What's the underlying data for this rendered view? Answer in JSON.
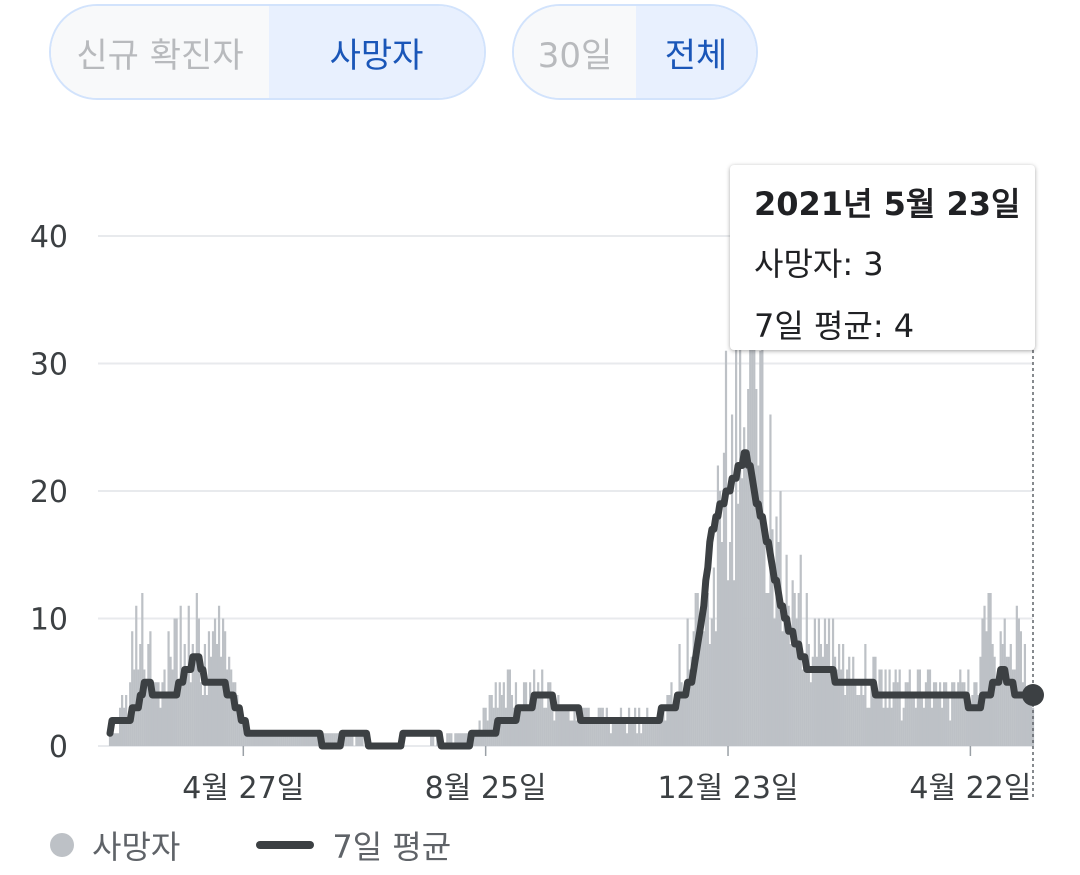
{
  "toggles": {
    "metric": {
      "options": [
        "신규 확진자",
        "사망자"
      ],
      "selected": "사망자"
    },
    "range": {
      "options": [
        "30일",
        "전체"
      ],
      "selected": "전체"
    }
  },
  "tooltip": {
    "date": "2021년 5월 23일",
    "deaths_label": "사망자: 3",
    "avg_label": "7일 평균: 4"
  },
  "legend": {
    "bars": "사망자",
    "line": "7일 평균"
  },
  "colors": {
    "bars": "#bdc1c6",
    "line": "#3c4043",
    "grid": "#e8eaed",
    "accent": "#1a56b8",
    "toggle_border": "#d2e3fc"
  },
  "chart_data": {
    "type": "bar",
    "ylim": [
      0,
      40
    ],
    "yticks": [
      0,
      10,
      20,
      30,
      40
    ],
    "x_tick_labels": [
      "4월 27일",
      "8월 25일",
      "12월 23일",
      "4월 22일"
    ],
    "x_tick_dates": [
      "2020-04-27",
      "2020-08-25",
      "2020-12-23",
      "2021-04-22"
    ],
    "x_range": [
      "2020-02-21",
      "2021-05-23"
    ],
    "grid": true,
    "highlight": {
      "date": "2021-05-23",
      "deaths": 3,
      "avg": 4
    },
    "series": [
      {
        "name": "사망자",
        "kind": "bar",
        "points": [
          [
            "2020-02-21",
            1
          ],
          [
            "2020-03-01",
            4
          ],
          [
            "2020-03-06",
            11
          ],
          [
            "2020-03-10",
            6
          ],
          [
            "2020-03-20",
            6
          ],
          [
            "2020-03-30",
            8
          ],
          [
            "2020-04-03",
            9
          ],
          [
            "2020-04-08",
            6
          ],
          [
            "2020-04-15",
            8
          ],
          [
            "2020-04-20",
            6
          ],
          [
            "2020-04-25",
            3
          ],
          [
            "2020-05-01",
            1
          ],
          [
            "2020-06-01",
            1
          ],
          [
            "2020-07-15",
            0
          ],
          [
            "2020-08-20",
            1
          ],
          [
            "2020-09-01",
            5
          ],
          [
            "2020-09-10",
            4
          ],
          [
            "2020-09-20",
            5
          ],
          [
            "2020-10-01",
            3
          ],
          [
            "2020-10-20",
            2
          ],
          [
            "2020-11-15",
            2
          ],
          [
            "2020-11-25",
            4
          ],
          [
            "2020-12-05",
            8
          ],
          [
            "2020-12-12",
            10
          ],
          [
            "2020-12-18",
            18
          ],
          [
            "2020-12-22",
            24
          ],
          [
            "2020-12-25",
            20
          ],
          [
            "2020-12-29",
            30
          ],
          [
            "2021-01-01",
            25
          ],
          [
            "2021-01-05",
            30
          ],
          [
            "2021-01-08",
            25
          ],
          [
            "2021-01-12",
            20
          ],
          [
            "2021-01-18",
            14
          ],
          [
            "2021-01-25",
            11
          ],
          [
            "2021-02-01",
            10
          ],
          [
            "2021-02-10",
            8
          ],
          [
            "2021-02-20",
            6
          ],
          [
            "2021-03-01",
            6
          ],
          [
            "2021-03-10",
            5
          ],
          [
            "2021-03-20",
            4
          ],
          [
            "2021-04-01",
            4
          ],
          [
            "2021-04-10",
            4
          ],
          [
            "2021-04-20",
            4
          ],
          [
            "2021-05-01",
            9
          ],
          [
            "2021-05-08",
            7
          ],
          [
            "2021-05-15",
            8
          ],
          [
            "2021-05-23",
            3
          ]
        ]
      },
      {
        "name": "7일 평균",
        "kind": "line",
        "points": [
          [
            "2020-02-21",
            1
          ],
          [
            "2020-02-23",
            2
          ],
          [
            "2020-03-01",
            2
          ],
          [
            "2020-03-05",
            3
          ],
          [
            "2020-03-10",
            5
          ],
          [
            "2020-03-14",
            4
          ],
          [
            "2020-03-24",
            4
          ],
          [
            "2020-03-30",
            6
          ],
          [
            "2020-04-04",
            7
          ],
          [
            "2020-04-08",
            5
          ],
          [
            "2020-04-16",
            5
          ],
          [
            "2020-04-24",
            3
          ],
          [
            "2020-04-30",
            1
          ],
          [
            "2020-05-30",
            1
          ],
          [
            "2020-06-10",
            0
          ],
          [
            "2020-06-20",
            1
          ],
          [
            "2020-07-05",
            0
          ],
          [
            "2020-07-25",
            1
          ],
          [
            "2020-08-10",
            0
          ],
          [
            "2020-08-25",
            1
          ],
          [
            "2020-09-05",
            2
          ],
          [
            "2020-09-15",
            3
          ],
          [
            "2020-09-20",
            4
          ],
          [
            "2020-10-05",
            3
          ],
          [
            "2020-10-15",
            2
          ],
          [
            "2020-11-15",
            2
          ],
          [
            "2020-11-25",
            3
          ],
          [
            "2020-12-05",
            5
          ],
          [
            "2020-12-10",
            10
          ],
          [
            "2020-12-15",
            17
          ],
          [
            "2020-12-20",
            19
          ],
          [
            "2020-12-26",
            21
          ],
          [
            "2021-01-01",
            23
          ],
          [
            "2021-01-05",
            20
          ],
          [
            "2021-01-10",
            17
          ],
          [
            "2021-01-14",
            14
          ],
          [
            "2021-01-20",
            10
          ],
          [
            "2021-01-26",
            8
          ],
          [
            "2021-02-01",
            6
          ],
          [
            "2021-02-10",
            6
          ],
          [
            "2021-02-16",
            5
          ],
          [
            "2021-03-01",
            5
          ],
          [
            "2021-03-10",
            4
          ],
          [
            "2021-03-20",
            4
          ],
          [
            "2021-04-05",
            4
          ],
          [
            "2021-04-15",
            4
          ],
          [
            "2021-04-25",
            3
          ],
          [
            "2021-05-01",
            4
          ],
          [
            "2021-05-08",
            6
          ],
          [
            "2021-05-15",
            4
          ],
          [
            "2021-05-23",
            4
          ]
        ]
      }
    ]
  }
}
